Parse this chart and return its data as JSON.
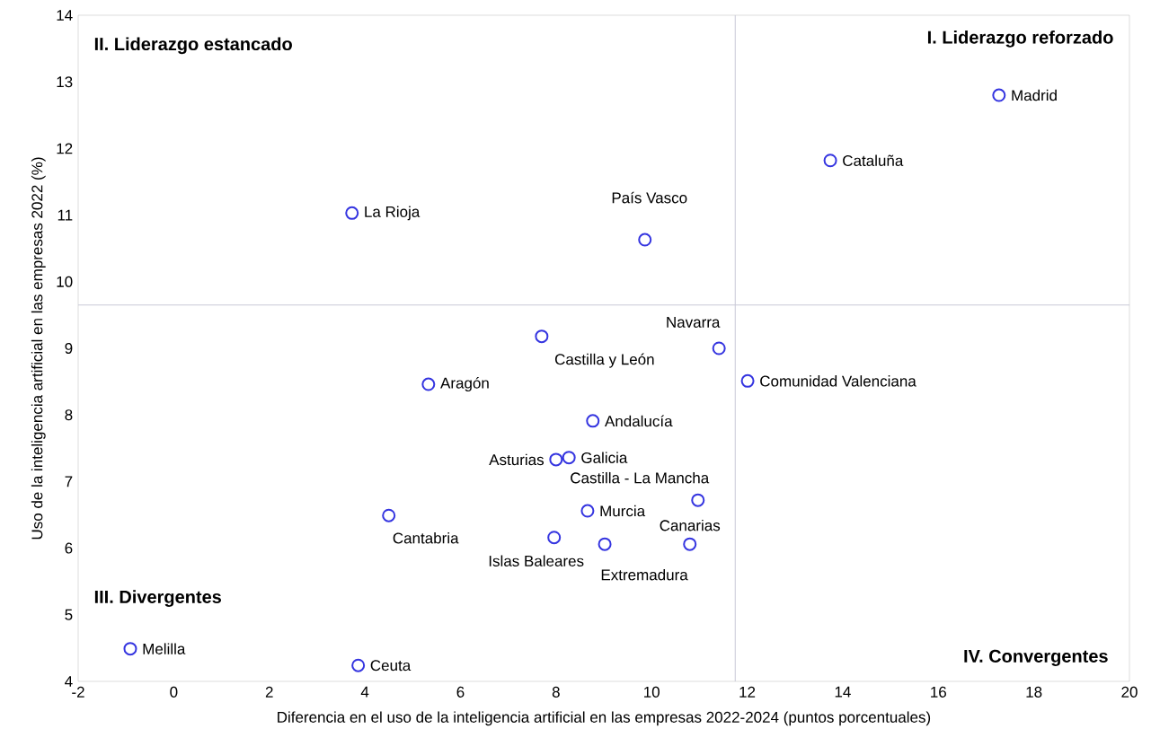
{
  "chart_data": {
    "type": "scatter",
    "xlabel": "Diferencia en el uso de la inteligencia artificial en las empresas 2022-2024 (puntos porcentuales)",
    "ylabel": "Uso de la inteligencia artificial en las empresas 2022 (%)",
    "x": [
      17.27,
      13.74,
      9.86,
      3.73,
      11.41,
      7.7,
      12.01,
      5.33,
      8.77,
      8.27,
      8.0,
      10.97,
      4.5,
      8.66,
      10.8,
      7.96,
      9.02,
      -0.91,
      3.86
    ],
    "values": [
      12.8,
      11.82,
      10.63,
      11.03,
      9.0,
      9.18,
      8.51,
      8.46,
      7.91,
      7.36,
      7.33,
      6.72,
      6.49,
      6.56,
      6.06,
      6.16,
      6.06,
      4.49,
      4.24
    ],
    "color": "#3535e0",
    "marker": "circle",
    "xlim": [
      -2,
      20
    ],
    "ylim": [
      4,
      14
    ],
    "xticks": [
      -2,
      0,
      2,
      4,
      6,
      8,
      10,
      12,
      14,
      16,
      18,
      20
    ],
    "yticks": [
      4,
      5,
      6,
      7,
      8,
      9,
      10,
      11,
      12,
      13,
      14
    ],
    "ref_lines": [
      {
        "axis": "x",
        "value": 11.75,
        "color": "#c8c8d6"
      },
      {
        "axis": "y",
        "value": 9.65,
        "color": "#c8c8d6"
      }
    ],
    "annotations": [
      "I. Liderazgo reforzado",
      "II. Liderazgo estancado",
      "III. Divergentes",
      "IV. Convergentes",
      {
        "text": "Madrid",
        "x": 17.27,
        "y": 12.8
      },
      {
        "text": "Cataluña",
        "x": 13.74,
        "y": 11.82
      },
      {
        "text": "País Vasco",
        "x": 9.86,
        "y": 10.63
      },
      {
        "text": "La Rioja",
        "x": 3.73,
        "y": 11.03
      },
      {
        "text": "Navarra",
        "x": 11.41,
        "y": 9.0
      },
      {
        "text": "Castilla y León",
        "x": 7.7,
        "y": 9.18
      },
      {
        "text": "Comunidad Valenciana",
        "x": 12.01,
        "y": 8.51
      },
      {
        "text": "Aragón",
        "x": 5.33,
        "y": 8.46
      },
      {
        "text": "Andalucía",
        "x": 8.77,
        "y": 7.91
      },
      {
        "text": "Galicia",
        "x": 8.27,
        "y": 7.36
      },
      {
        "text": "Asturias",
        "x": 8.0,
        "y": 7.33
      },
      {
        "text": "Castilla - La Mancha",
        "x": 10.97,
        "y": 6.72
      },
      {
        "text": "Cantabria",
        "x": 4.5,
        "y": 6.49
      },
      {
        "text": "Murcia",
        "x": 8.66,
        "y": 6.56
      },
      {
        "text": "Canarias",
        "x": 10.8,
        "y": 6.06
      },
      {
        "text": "Islas Baleares",
        "x": 7.96,
        "y": 6.16
      },
      {
        "text": "Extremadura",
        "x": 9.02,
        "y": 6.06
      },
      {
        "text": "Melilla",
        "x": -0.91,
        "y": 4.49
      },
      {
        "text": "Ceuta",
        "x": 3.86,
        "y": 4.24
      }
    ]
  }
}
